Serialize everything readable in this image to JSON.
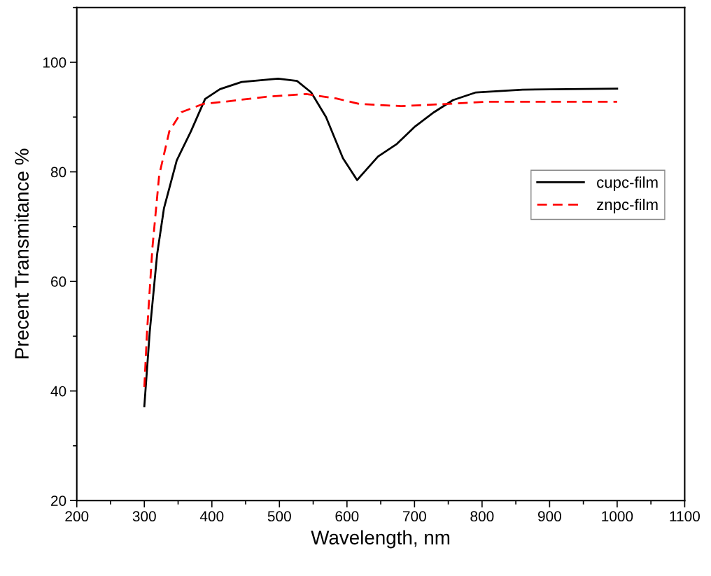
{
  "chart_data": {
    "type": "line",
    "xlabel": "Wavelength, nm",
    "ylabel": "Precent Transmitance %",
    "xlim": [
      200,
      1100
    ],
    "ylim": [
      20,
      110
    ],
    "xticks": [
      200,
      300,
      400,
      500,
      600,
      700,
      800,
      900,
      1000,
      1100
    ],
    "yticks": [
      20,
      40,
      60,
      80,
      100
    ],
    "grid": false,
    "legend": "right",
    "series": [
      {
        "name": "cupc-film",
        "color": "#000000",
        "line_style": "solid",
        "x": [
          300,
          308,
          319,
          329,
          348,
          369,
          390,
          412,
          444,
          498,
          526,
          547,
          569,
          594,
          615,
          646,
          674,
          701,
          729,
          757,
          791,
          860,
          1000
        ],
        "values": [
          37.2,
          50.8,
          65,
          73.3,
          82.1,
          87.4,
          93.3,
          95.1,
          96.4,
          97.0,
          96.6,
          94.5,
          90.0,
          82.5,
          78.5,
          82.8,
          85.1,
          88.3,
          90.9,
          93.1,
          94.5,
          95.0,
          95.2
        ]
      },
      {
        "name": "znpc-film",
        "color": "#ff0000",
        "line_style": "dashed",
        "x": [
          300,
          304,
          312,
          322,
          337,
          355,
          387,
          426,
          480,
          540,
          584,
          618,
          680,
          750,
          809,
          1000
        ],
        "values": [
          40.7,
          50.8,
          66.2,
          79.4,
          87.4,
          90.9,
          92.4,
          92.9,
          93.7,
          94.2,
          93.4,
          92.4,
          92.0,
          92.4,
          92.8,
          92.8
        ]
      }
    ]
  }
}
